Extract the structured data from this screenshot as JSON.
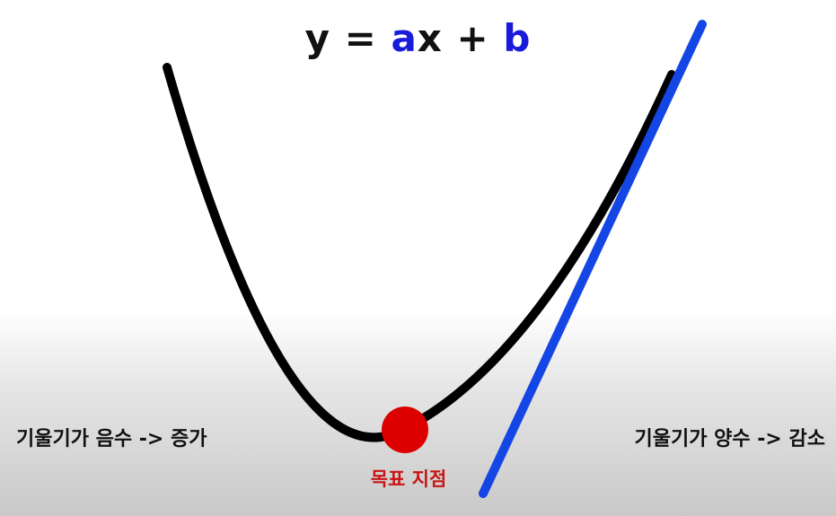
{
  "equation": {
    "lhs": "y",
    "equals": "=",
    "coef_a": "a",
    "var_x": "x",
    "plus": "+",
    "coef_b": "b"
  },
  "labels": {
    "left": "기울기가 음수 -> 증가",
    "right": "기울기가 양수 -> 감소",
    "target": "목표 지점"
  },
  "colors": {
    "curve": "#000000",
    "tangent_line": "#1446e6",
    "target_point": "#dd0000",
    "coefficients": "#1a1adb",
    "target_label": "#c81414"
  }
}
